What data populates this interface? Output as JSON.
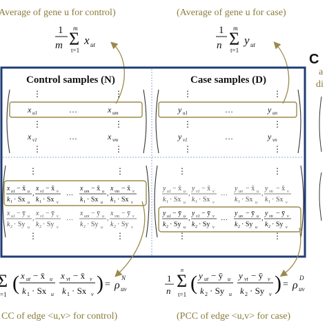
{
  "captions": {
    "top_left": "Average of gene u for control)",
    "top_right": "(Average of gene u for case)",
    "bottom_left": "CC of edge <u,v> for control)",
    "bottom_right": "(PCC of edge <u,v> for case)"
  },
  "panel": {
    "letter": "C",
    "side_fragment_1": "a",
    "side_fragment_2": "di",
    "control_header": "Control samples (N)",
    "case_header": "Case samples (D)"
  },
  "formulas": {
    "control_mean": "1/m Σ x_ut",
    "case_mean": "1/n Σ y_ut",
    "control_pcc": "ρ_uv^N",
    "case_pcc": "ρ_uv^D"
  },
  "colors": {
    "panel_border": "#1f3c73",
    "highlight": "#9a8a4a",
    "caption": "#8a7b3a",
    "divider": "#8fa8c8"
  }
}
